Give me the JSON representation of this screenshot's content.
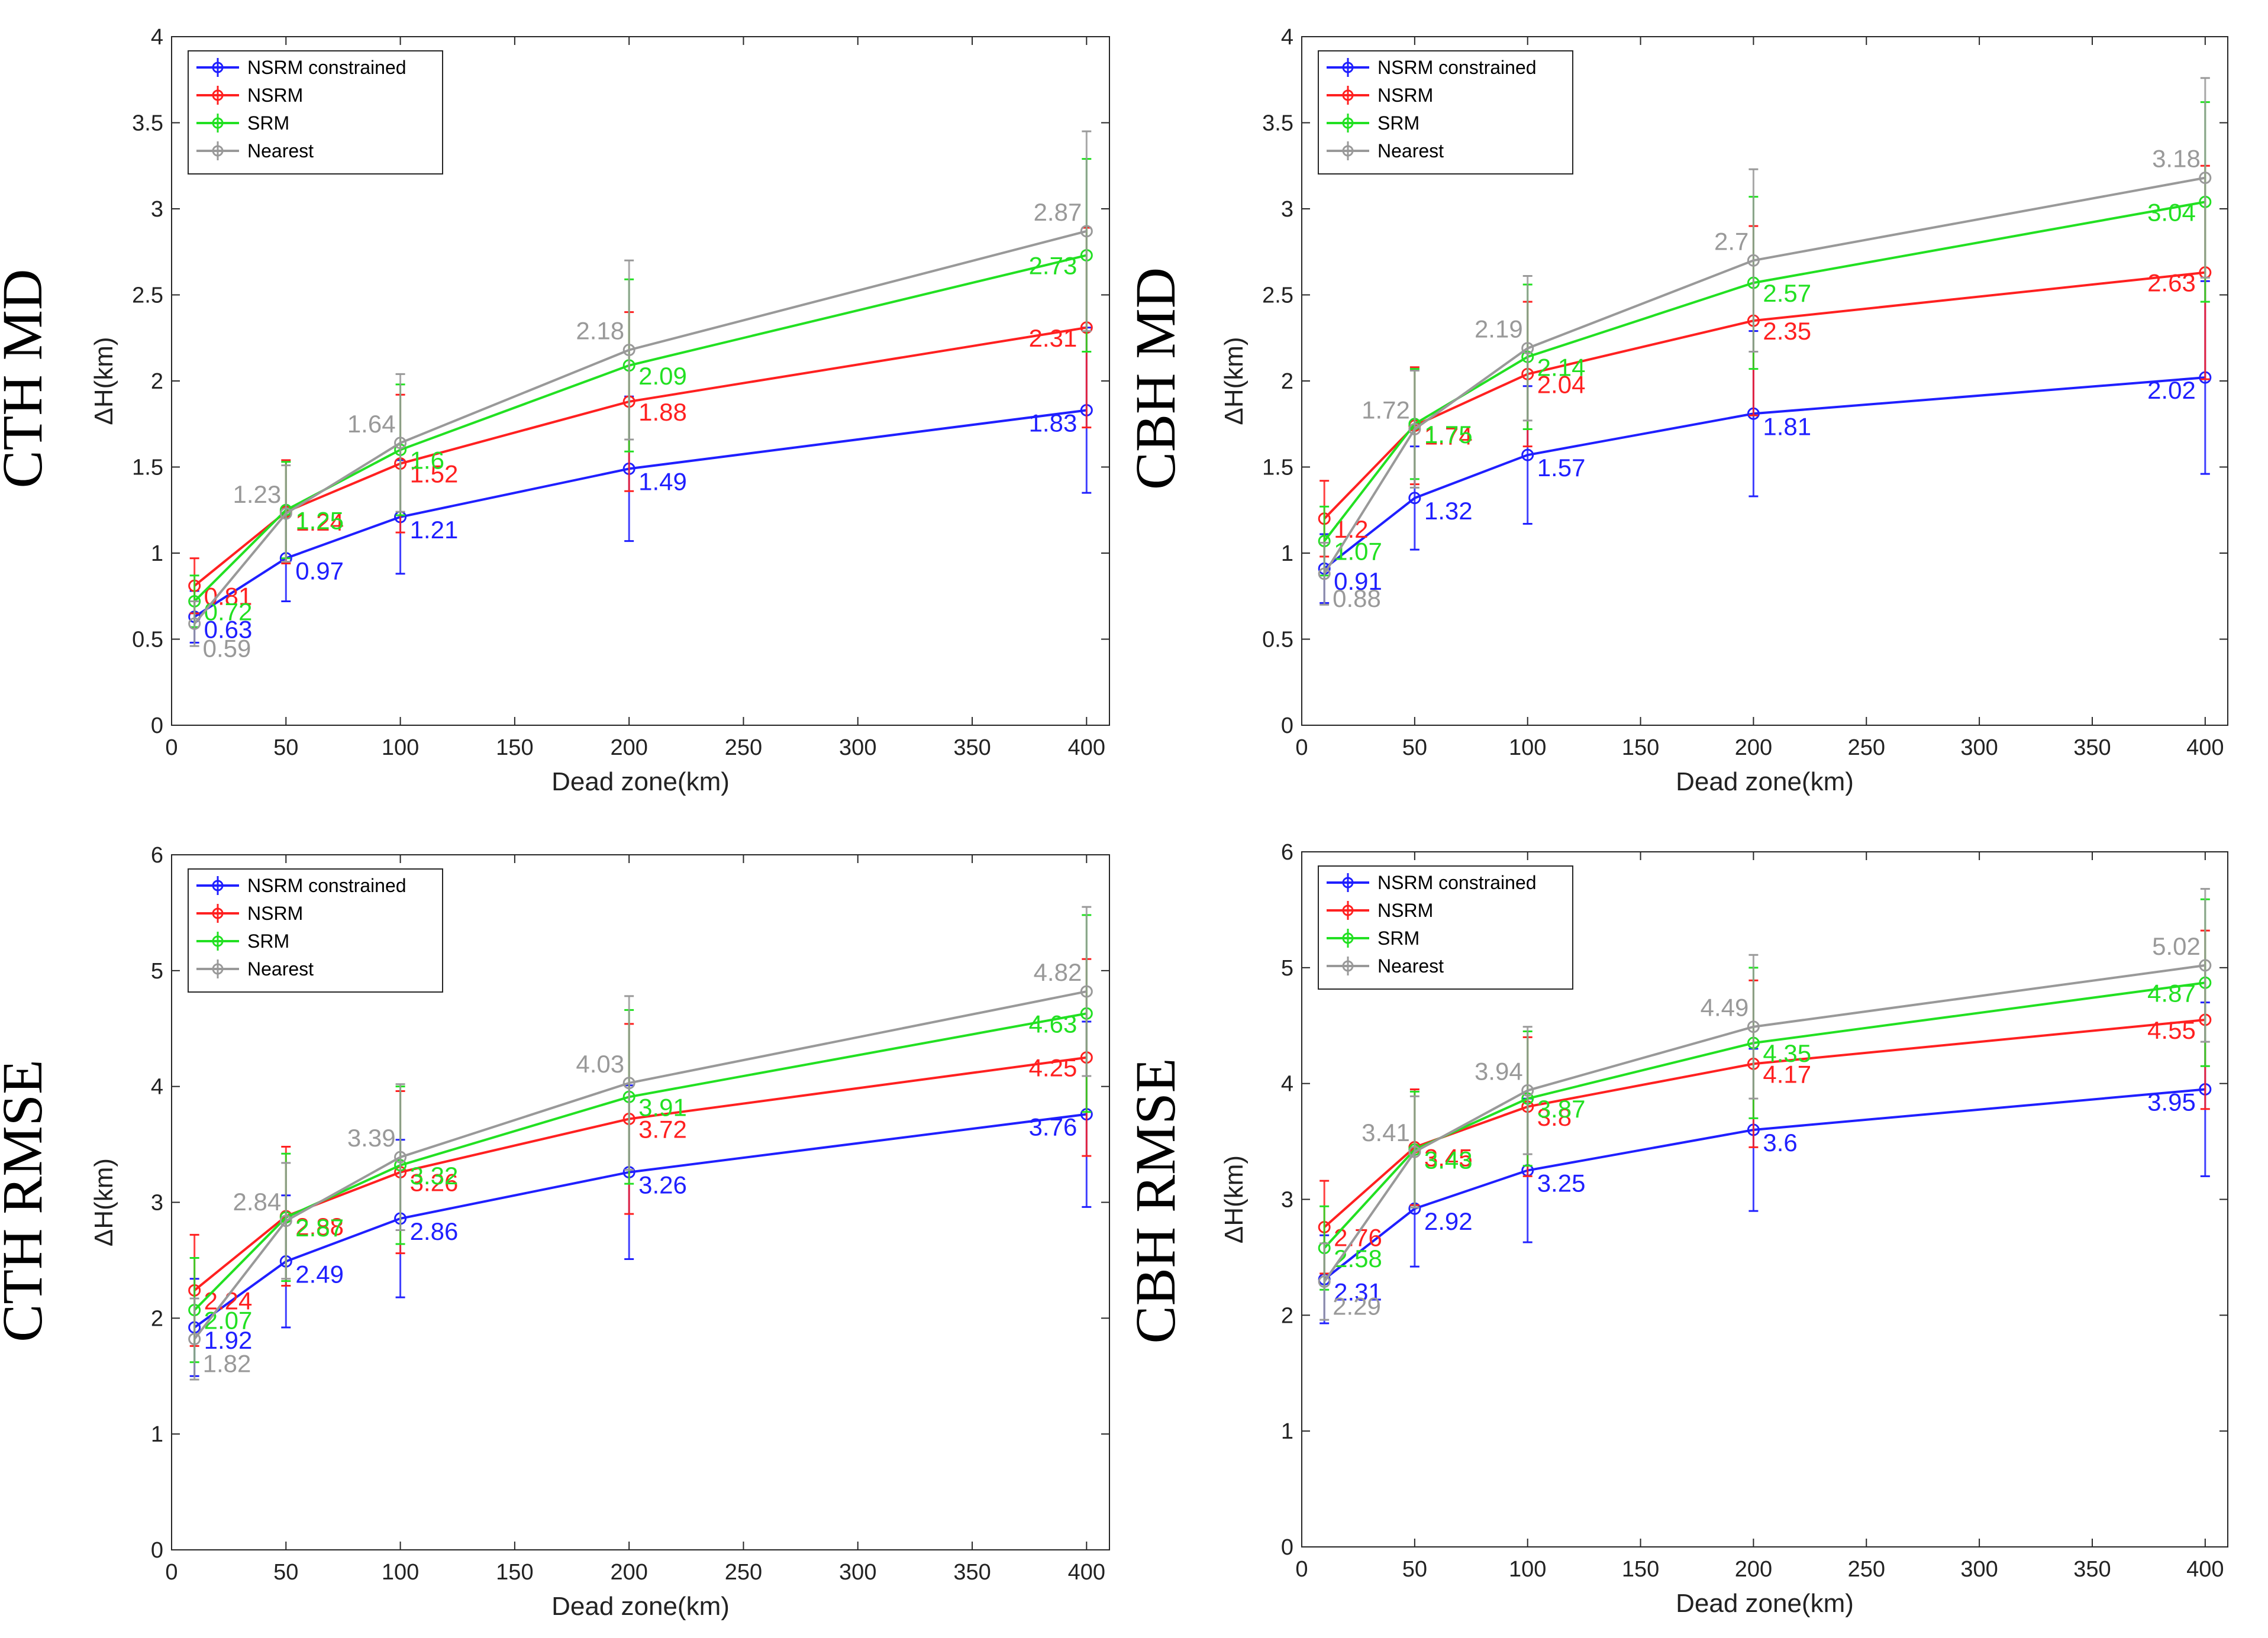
{
  "figure": {
    "background": "#ffffff"
  },
  "chart_data": [
    {
      "type": "line",
      "row_label": "CTH MD",
      "xlabel": "Dead zone(km)",
      "ylabel": "ΔH(km)",
      "xlim": [
        0,
        410
      ],
      "ylim": [
        0,
        4
      ],
      "xticks": [
        0,
        50,
        100,
        150,
        200,
        250,
        300,
        350,
        400
      ],
      "yticks": [
        0,
        0.5,
        1,
        1.5,
        2,
        2.5,
        3,
        3.5,
        4
      ],
      "ytick_labels": [
        "0",
        "0.5",
        "1",
        "1.5",
        "2",
        "2.5",
        "3",
        "3.5",
        "4"
      ],
      "legend": "top-left",
      "x": [
        10,
        50,
        100,
        200,
        400
      ],
      "series": [
        {
          "name": "NSRM constrained",
          "color": "#1f1fff",
          "values": [
            0.63,
            0.97,
            1.21,
            1.49,
            1.83
          ],
          "labels": [
            "0.63",
            "0.97",
            "1.21",
            "1.49",
            "1.83"
          ],
          "err": [
            0.15,
            0.25,
            0.33,
            0.42,
            0.48
          ]
        },
        {
          "name": "NSRM",
          "color": "#ff2020",
          "values": [
            0.81,
            1.24,
            1.52,
            1.88,
            2.31
          ],
          "labels": [
            "0.81",
            "1.24",
            "1.52",
            "1.88",
            "2.31"
          ],
          "err": [
            0.16,
            0.3,
            0.4,
            0.52,
            0.58
          ]
        },
        {
          "name": "SRM",
          "color": "#22e022",
          "values": [
            0.72,
            1.25,
            1.6,
            2.09,
            2.73
          ],
          "labels": [
            "0.72",
            "1.25",
            "1.6",
            "2.09",
            "2.73"
          ],
          "err": [
            0.15,
            0.28,
            0.38,
            0.5,
            0.56
          ]
        },
        {
          "name": "Nearest",
          "color": "#999999",
          "values": [
            0.59,
            1.23,
            1.64,
            2.18,
            2.87
          ],
          "labels": [
            "0.59",
            "1.23",
            "1.64",
            "2.18",
            "2.87"
          ],
          "err": [
            0.13,
            0.28,
            0.4,
            0.52,
            0.58
          ]
        }
      ]
    },
    {
      "type": "line",
      "row_label": "CBH MD",
      "xlabel": "Dead zone(km)",
      "ylabel": "ΔH(km)",
      "xlim": [
        0,
        410
      ],
      "ylim": [
        0,
        4
      ],
      "xticks": [
        0,
        50,
        100,
        150,
        200,
        250,
        300,
        350,
        400
      ],
      "yticks": [
        0,
        0.5,
        1,
        1.5,
        2,
        2.5,
        3,
        3.5,
        4
      ],
      "ytick_labels": [
        "0",
        "0.5",
        "1",
        "1.5",
        "2",
        "2.5",
        "3",
        "3.5",
        "4"
      ],
      "legend": "top-left",
      "x": [
        10,
        50,
        100,
        200,
        400
      ],
      "series": [
        {
          "name": "NSRM constrained",
          "color": "#1f1fff",
          "values": [
            0.91,
            1.32,
            1.57,
            1.81,
            2.02
          ],
          "labels": [
            "0.91",
            "1.32",
            "1.57",
            "1.81",
            "2.02"
          ],
          "err": [
            0.2,
            0.3,
            0.4,
            0.48,
            0.56
          ]
        },
        {
          "name": "NSRM",
          "color": "#ff2020",
          "values": [
            1.2,
            1.74,
            2.04,
            2.35,
            2.63
          ],
          "labels": [
            "1.2",
            "1.74",
            "2.04",
            "2.35",
            "2.63"
          ],
          "err": [
            0.22,
            0.34,
            0.42,
            0.55,
            0.62
          ]
        },
        {
          "name": "SRM",
          "color": "#22e022",
          "values": [
            1.07,
            1.75,
            2.14,
            2.57,
            3.04
          ],
          "labels": [
            "1.07",
            "1.75",
            "2.14",
            "2.57",
            "3.04"
          ],
          "err": [
            0.2,
            0.32,
            0.42,
            0.5,
            0.58
          ]
        },
        {
          "name": "Nearest",
          "color": "#999999",
          "values": [
            0.88,
            1.72,
            2.19,
            2.7,
            3.18
          ],
          "labels": [
            "0.88",
            "1.72",
            "2.19",
            "2.7",
            "3.18"
          ],
          "err": [
            0.18,
            0.34,
            0.42,
            0.53,
            0.58
          ]
        }
      ]
    },
    {
      "type": "line",
      "row_label": "CTH RMSE",
      "xlabel": "Dead zone(km)",
      "ylabel": "ΔH(km)",
      "xlim": [
        0,
        410
      ],
      "ylim": [
        0,
        6
      ],
      "xticks": [
        0,
        50,
        100,
        150,
        200,
        250,
        300,
        350,
        400
      ],
      "yticks": [
        0,
        1,
        2,
        3,
        4,
        5,
        6
      ],
      "ytick_labels": [
        "0",
        "1",
        "2",
        "3",
        "4",
        "5",
        "6"
      ],
      "legend": "top-left",
      "x": [
        10,
        50,
        100,
        200,
        400
      ],
      "series": [
        {
          "name": "NSRM constrained",
          "color": "#1f1fff",
          "values": [
            1.92,
            2.49,
            2.86,
            3.26,
            3.76
          ],
          "labels": [
            "1.92",
            "2.49",
            "2.86",
            "3.26",
            "3.76"
          ],
          "err": [
            0.42,
            0.57,
            0.68,
            0.75,
            0.8
          ]
        },
        {
          "name": "NSRM",
          "color": "#ff2020",
          "values": [
            2.24,
            2.88,
            3.26,
            3.72,
            4.25
          ],
          "labels": [
            "2.24",
            "2.88",
            "3.26",
            "3.72",
            "4.25"
          ],
          "err": [
            0.48,
            0.6,
            0.7,
            0.82,
            0.85
          ]
        },
        {
          "name": "SRM",
          "color": "#22e022",
          "values": [
            2.07,
            2.87,
            3.32,
            3.91,
            4.63
          ],
          "labels": [
            "2.07",
            "2.87",
            "3.32",
            "3.91",
            "4.63"
          ],
          "err": [
            0.45,
            0.55,
            0.68,
            0.75,
            0.85
          ]
        },
        {
          "name": "Nearest",
          "color": "#999999",
          "values": [
            1.82,
            2.84,
            3.39,
            4.03,
            4.82
          ],
          "labels": [
            "1.82",
            "2.84",
            "3.39",
            "4.03",
            "4.82"
          ],
          "err": [
            0.35,
            0.5,
            0.63,
            0.75,
            0.73
          ]
        }
      ]
    },
    {
      "type": "line",
      "row_label": "CBH RMSE",
      "xlabel": "Dead zone(km)",
      "ylabel": "ΔH(km)",
      "xlim": [
        0,
        410
      ],
      "ylim": [
        0,
        6
      ],
      "xticks": [
        0,
        50,
        100,
        150,
        200,
        250,
        300,
        350,
        400
      ],
      "yticks": [
        0,
        1,
        2,
        3,
        4,
        5,
        6
      ],
      "ytick_labels": [
        "0",
        "1",
        "2",
        "3",
        "4",
        "5",
        "6"
      ],
      "legend": "top-left",
      "x": [
        10,
        50,
        100,
        200,
        400
      ],
      "series": [
        {
          "name": "NSRM constrained",
          "color": "#1f1fff",
          "values": [
            2.31,
            2.92,
            3.25,
            3.6,
            3.95
          ],
          "labels": [
            "2.31",
            "2.92",
            "3.25",
            "3.6",
            "3.95"
          ],
          "err": [
            0.38,
            0.5,
            0.62,
            0.7,
            0.75
          ]
        },
        {
          "name": "NSRM",
          "color": "#ff2020",
          "values": [
            2.76,
            3.45,
            3.8,
            4.17,
            4.55
          ],
          "labels": [
            "2.76",
            "3.45",
            "3.8",
            "4.17",
            "4.55"
          ],
          "err": [
            0.4,
            0.5,
            0.6,
            0.72,
            0.77
          ]
        },
        {
          "name": "SRM",
          "color": "#22e022",
          "values": [
            2.58,
            3.43,
            3.87,
            4.35,
            4.87
          ],
          "labels": [
            "2.58",
            "3.43",
            "3.87",
            "4.35",
            "4.87"
          ],
          "err": [
            0.36,
            0.5,
            0.58,
            0.65,
            0.72
          ]
        },
        {
          "name": "Nearest",
          "color": "#999999",
          "values": [
            2.29,
            3.41,
            3.94,
            4.49,
            5.02
          ],
          "labels": [
            "2.29",
            "3.41",
            "3.94",
            "4.49",
            "5.02"
          ],
          "err": [
            0.33,
            0.48,
            0.55,
            0.62,
            0.66
          ]
        }
      ]
    }
  ]
}
